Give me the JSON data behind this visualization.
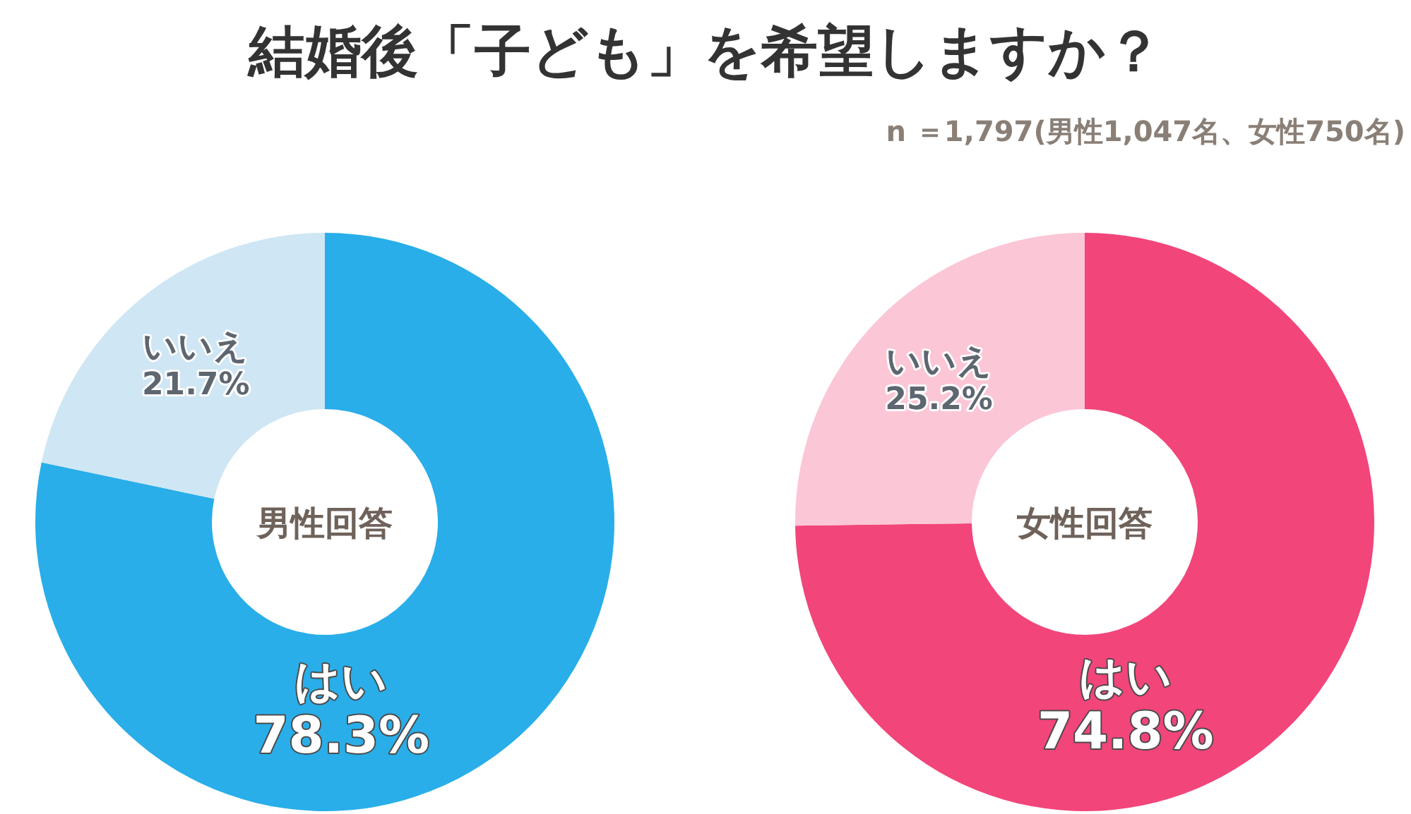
{
  "chart_data": [
    {
      "type": "other",
      "title": "結婚後「子ども」を希望しますか？",
      "subtitle": "n ＝1,797(男性1,047名、女性750名)"
    },
    {
      "type": "donut",
      "annotations": [
        "男性回答"
      ],
      "categories": [
        "はい",
        "いいえ"
      ],
      "values": [
        78.3,
        21.7
      ],
      "value_labels": [
        "78.3%",
        "21.7%"
      ],
      "colors": [
        "#29aee9",
        "#cfe6f4"
      ]
    },
    {
      "type": "donut",
      "annotations": [
        "女性回答"
      ],
      "categories": [
        "はい",
        "いいえ"
      ],
      "values": [
        74.8,
        25.2
      ],
      "value_labels": [
        "74.8%",
        "25.2%"
      ],
      "colors": [
        "#f2457a",
        "#fbc6d6"
      ]
    }
  ]
}
